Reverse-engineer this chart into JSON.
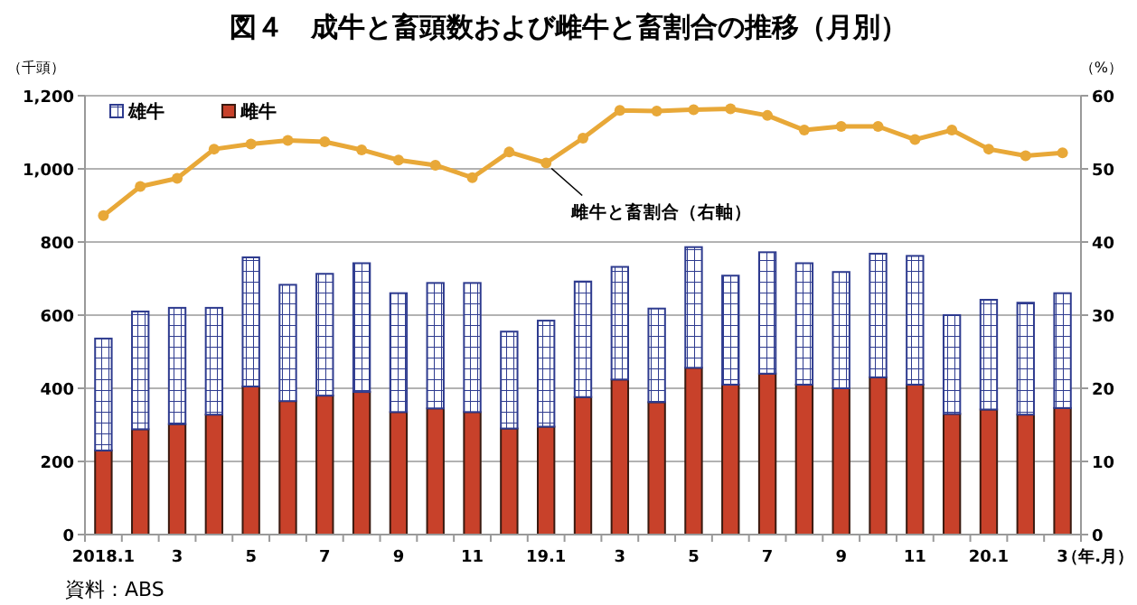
{
  "chart_data": {
    "type": "bar",
    "stacked": true,
    "title": "図４　成牛と畜頭数および雌牛と畜割合の推移（月別）",
    "ylabel": "（千頭）",
    "y2label": "（%）",
    "xlabel": "（年.月）",
    "categories": [
      "2018.1",
      null,
      "3",
      null,
      "5",
      null,
      "7",
      null,
      "9",
      null,
      "11",
      null,
      "19.1",
      null,
      "3",
      null,
      "5",
      null,
      "7",
      null,
      "9",
      null,
      "11",
      null,
      "20.1",
      null,
      "3"
    ],
    "series": [
      {
        "name": "雌牛",
        "color": "#c8412a",
        "values": [
          230,
          288,
          302,
          328,
          405,
          365,
          380,
          390,
          335,
          345,
          335,
          290,
          295,
          376,
          424,
          362,
          456,
          410,
          440,
          410,
          400,
          430,
          410,
          330,
          342,
          328,
          346
        ]
      },
      {
        "name": "雄牛",
        "color": "#2e3b8f",
        "values": [
          306,
          322,
          318,
          292,
          353,
          318,
          333,
          352,
          325,
          343,
          353,
          265,
          290,
          316,
          308,
          256,
          330,
          298,
          332,
          332,
          318,
          338,
          352,
          270,
          300,
          306,
          314
        ]
      },
      {
        "name": "雌牛と畜割合（右軸）",
        "type": "line",
        "axis": "y2",
        "color": "#e8a838",
        "marker": "circle",
        "values": [
          43.6,
          47.6,
          48.7,
          52.7,
          53.4,
          53.9,
          53.7,
          52.6,
          51.2,
          50.5,
          48.8,
          52.3,
          50.8,
          54.2,
          58.0,
          57.9,
          58.1,
          58.2,
          57.3,
          55.3,
          55.8,
          55.8,
          54.0,
          55.3,
          52.7,
          51.8,
          52.2
        ]
      }
    ],
    "ylim": [
      0,
      1200
    ],
    "yticks": [
      0,
      200,
      400,
      {
        "value": 600,
        "label": "600"
      },
      800,
      {
        "value": 1000,
        "label": "1,000"
      },
      {
        "value": 1200,
        "label": "1,200"
      }
    ],
    "y2lim": [
      0,
      60
    ],
    "y2ticks": [
      0,
      10,
      20,
      30,
      40,
      50,
      60
    ],
    "grid": "y",
    "legend": "top left",
    "annotations": [
      "資料：ABS"
    ]
  }
}
